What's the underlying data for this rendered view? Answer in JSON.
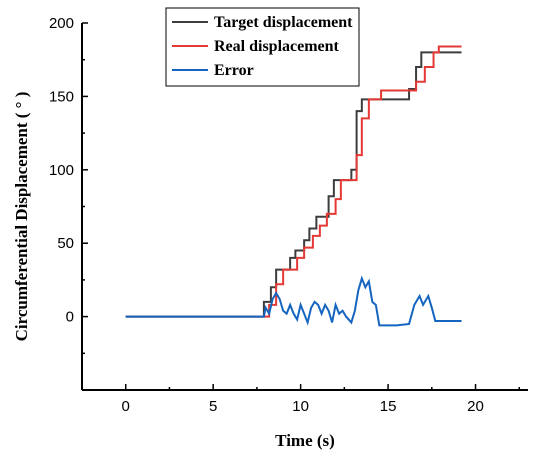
{
  "chart_data": {
    "type": "line",
    "title": "",
    "xlabel": "Time (s)",
    "ylabel": "Circumferential Displacement ( ° )",
    "xlim": [
      -2.5,
      23
    ],
    "ylim": [
      -50,
      200
    ],
    "xticks": [
      "0",
      "5",
      "10",
      "15",
      "20"
    ],
    "xtick_values": [
      0,
      5,
      10,
      15,
      20
    ],
    "yticks": [
      "0",
      "50",
      "100",
      "150",
      "200"
    ],
    "ytick_values": [
      0,
      50,
      100,
      150,
      200
    ],
    "grid": false,
    "legend_position": "top-right",
    "series": [
      {
        "name": "Target displacement",
        "color": "#3d3d3d",
        "points": [
          [
            0,
            0
          ],
          [
            7.9,
            0
          ],
          [
            7.9,
            10
          ],
          [
            8.3,
            10
          ],
          [
            8.3,
            20
          ],
          [
            8.6,
            20
          ],
          [
            8.6,
            32
          ],
          [
            9.4,
            32
          ],
          [
            9.4,
            40
          ],
          [
            9.7,
            40
          ],
          [
            9.7,
            45
          ],
          [
            10.2,
            45
          ],
          [
            10.2,
            52
          ],
          [
            10.5,
            52
          ],
          [
            10.5,
            60
          ],
          [
            10.9,
            60
          ],
          [
            10.9,
            68
          ],
          [
            11.6,
            68
          ],
          [
            11.6,
            82
          ],
          [
            11.9,
            82
          ],
          [
            11.9,
            93
          ],
          [
            12.9,
            93
          ],
          [
            12.9,
            100
          ],
          [
            13.2,
            100
          ],
          [
            13.2,
            140
          ],
          [
            13.5,
            140
          ],
          [
            13.5,
            148
          ],
          [
            16.2,
            148
          ],
          [
            16.2,
            155
          ],
          [
            16.6,
            155
          ],
          [
            16.6,
            170
          ],
          [
            16.9,
            170
          ],
          [
            16.9,
            180
          ],
          [
            19.2,
            180
          ]
        ]
      },
      {
        "name": "Real displacement",
        "color": "#e53935",
        "points": [
          [
            0,
            0
          ],
          [
            8.2,
            0
          ],
          [
            8.2,
            8
          ],
          [
            8.6,
            8
          ],
          [
            8.6,
            22
          ],
          [
            9.0,
            22
          ],
          [
            9.0,
            32
          ],
          [
            9.8,
            32
          ],
          [
            9.8,
            40
          ],
          [
            10.2,
            40
          ],
          [
            10.2,
            47
          ],
          [
            10.7,
            47
          ],
          [
            10.7,
            55
          ],
          [
            11.1,
            55
          ],
          [
            11.1,
            62
          ],
          [
            11.5,
            62
          ],
          [
            11.5,
            70
          ],
          [
            12.0,
            70
          ],
          [
            12.0,
            80
          ],
          [
            12.3,
            80
          ],
          [
            12.3,
            93
          ],
          [
            13.2,
            93
          ],
          [
            13.2,
            110
          ],
          [
            13.5,
            110
          ],
          [
            13.5,
            135
          ],
          [
            13.9,
            135
          ],
          [
            13.9,
            148
          ],
          [
            14.6,
            148
          ],
          [
            14.6,
            154
          ],
          [
            16.6,
            154
          ],
          [
            16.6,
            160
          ],
          [
            17.1,
            160
          ],
          [
            17.1,
            170
          ],
          [
            17.6,
            170
          ],
          [
            17.6,
            180
          ],
          [
            17.9,
            180
          ],
          [
            17.9,
            184
          ],
          [
            19.2,
            184
          ]
        ]
      },
      {
        "name": "Error",
        "color": "#1565c0",
        "points": [
          [
            0,
            0
          ],
          [
            7.9,
            0
          ],
          [
            8.0,
            6
          ],
          [
            8.2,
            2
          ],
          [
            8.4,
            12
          ],
          [
            8.6,
            16
          ],
          [
            8.8,
            12
          ],
          [
            9.0,
            4
          ],
          [
            9.2,
            2
          ],
          [
            9.4,
            8
          ],
          [
            9.6,
            2
          ],
          [
            9.8,
            -2
          ],
          [
            10.0,
            8
          ],
          [
            10.2,
            2
          ],
          [
            10.4,
            -4
          ],
          [
            10.6,
            6
          ],
          [
            10.8,
            10
          ],
          [
            11.0,
            8
          ],
          [
            11.2,
            2
          ],
          [
            11.4,
            8
          ],
          [
            11.6,
            4
          ],
          [
            11.8,
            -4
          ],
          [
            12.0,
            8
          ],
          [
            12.2,
            2
          ],
          [
            12.4,
            4
          ],
          [
            12.6,
            0
          ],
          [
            12.9,
            -4
          ],
          [
            13.1,
            4
          ],
          [
            13.3,
            18
          ],
          [
            13.5,
            26
          ],
          [
            13.7,
            20
          ],
          [
            13.9,
            24
          ],
          [
            14.1,
            10
          ],
          [
            14.3,
            8
          ],
          [
            14.5,
            -6
          ],
          [
            14.8,
            -6
          ],
          [
            15.5,
            -6
          ],
          [
            16.2,
            -5
          ],
          [
            16.5,
            8
          ],
          [
            16.8,
            14
          ],
          [
            17.0,
            8
          ],
          [
            17.3,
            14
          ],
          [
            17.5,
            6
          ],
          [
            17.7,
            -3
          ],
          [
            18.0,
            -3
          ],
          [
            19.2,
            -3
          ]
        ]
      }
    ]
  }
}
